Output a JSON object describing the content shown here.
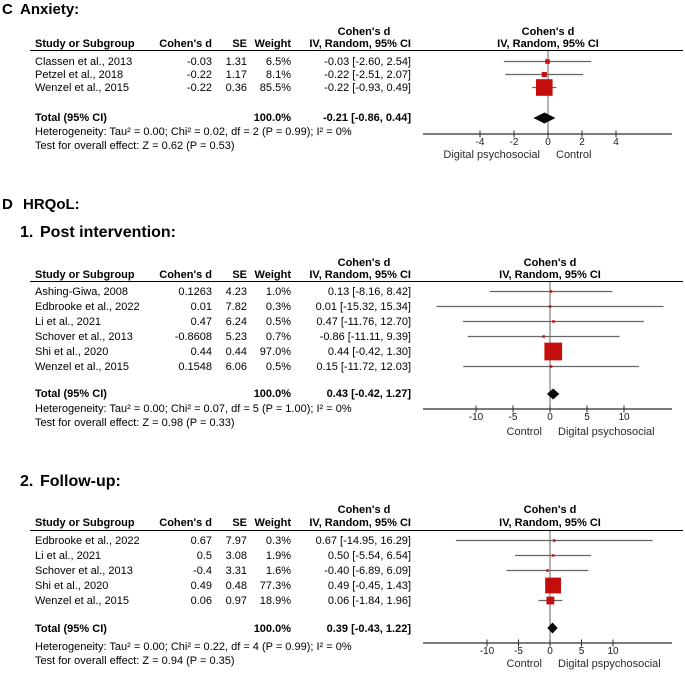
{
  "colors": {
    "marker_red": "#C40D0D",
    "diamond_black": "#0a0a0a",
    "ci_line_gray": "#666666",
    "axis_dark": "#2e2e2e",
    "text_black": "#000000"
  },
  "chart_data": [
    {
      "type": "forest",
      "section_label": "C",
      "section_title": "Anxiety:",
      "subsection_number": "",
      "subsection_title": "",
      "effect_measure": "Cohen's d",
      "model_label": "IV, Random, 95% CI",
      "table_headers": {
        "study": "Study or Subgroup",
        "effect": "Cohen's d",
        "se": "SE",
        "weight": "Weight",
        "ci": "IV, Random, 95% CI"
      },
      "studies": [
        {
          "name": "Classen et al., 2013",
          "effect": "-0.03",
          "se": "1.31",
          "weight": "6.5%",
          "ci_text": "-0.03 [-2.60, 2.54]",
          "est": -0.03,
          "lo": -2.6,
          "hi": 2.54,
          "weight_pct": 6.5
        },
        {
          "name": "Petzel et al., 2018",
          "effect": "-0.22",
          "se": "1.17",
          "weight": "8.1%",
          "ci_text": "-0.22 [-2.51, 2.07]",
          "est": -0.22,
          "lo": -2.51,
          "hi": 2.07,
          "weight_pct": 8.1
        },
        {
          "name": "Wenzel et al., 2015",
          "effect": "-0.22",
          "se": "0.36",
          "weight": "85.5%",
          "ci_text": "-0.22 [-0.93, 0.49]",
          "est": -0.22,
          "lo": -0.93,
          "hi": 0.49,
          "weight_pct": 85.5
        }
      ],
      "total": {
        "label": "Total (95% CI)",
        "weight": "100.0%",
        "ci_text": "-0.21 [-0.86, 0.44]",
        "est": -0.21,
        "lo": -0.86,
        "hi": 0.44
      },
      "heterogeneity": "Heterogeneity: Tau² = 0.00; Chi² = 0.02, df = 2 (P = 0.99); I² = 0%",
      "overall_test": "Test for overall effect: Z = 0.62 (P = 0.53)",
      "axis": {
        "ticks": [
          -4,
          -2,
          0,
          2,
          4
        ],
        "range": [
          -7.3,
          7.3
        ],
        "left_label": "Digital psychosocial",
        "right_label": "Control"
      }
    },
    {
      "type": "forest",
      "section_label": "D",
      "section_title": "HRQoL:",
      "subsection_number": "1.",
      "subsection_title": "Post intervention:",
      "effect_measure": "Cohen's d",
      "model_label": "IV, Random, 95% CI",
      "table_headers": {
        "study": "Study or Subgroup",
        "effect": "Cohen's d",
        "se": "SE",
        "weight": "Weight",
        "ci": "IV, Random, 95% CI"
      },
      "studies": [
        {
          "name": "Ashing-Giwa, 2008",
          "effect": "0.1263",
          "se": "4.23",
          "weight": "1.0%",
          "ci_text": "0.13 [-8.16, 8.42]",
          "est": 0.13,
          "lo": -8.16,
          "hi": 8.42,
          "weight_pct": 1.0
        },
        {
          "name": "Edbrooke et al., 2022",
          "effect": "0.01",
          "se": "7.82",
          "weight": "0.3%",
          "ci_text": "0.01 [-15.32, 15.34]",
          "est": 0.01,
          "lo": -15.32,
          "hi": 15.34,
          "weight_pct": 0.3
        },
        {
          "name": "Li et al., 2021",
          "effect": "0.47",
          "se": "6.24",
          "weight": "0.5%",
          "ci_text": "0.47 [-11.76, 12.70]",
          "est": 0.47,
          "lo": -11.76,
          "hi": 12.7,
          "weight_pct": 0.5
        },
        {
          "name": "Schover et al., 2013",
          "effect": "-0.8608",
          "se": "5.23",
          "weight": "0.7%",
          "ci_text": "-0.86 [-11.11, 9.39]",
          "est": -0.86,
          "lo": -11.11,
          "hi": 9.39,
          "weight_pct": 0.7
        },
        {
          "name": "Shi et al., 2020",
          "effect": "0.44",
          "se": "0.44",
          "weight": "97.0%",
          "ci_text": "0.44 [-0.42, 1.30]",
          "est": 0.44,
          "lo": -0.42,
          "hi": 1.3,
          "weight_pct": 97.0
        },
        {
          "name": "Wenzel et al., 2015",
          "effect": "0.1548",
          "se": "6.06",
          "weight": "0.5%",
          "ci_text": "0.15 [-11.72, 12.03]",
          "est": 0.15,
          "lo": -11.72,
          "hi": 12.03,
          "weight_pct": 0.5
        }
      ],
      "total": {
        "label": "Total (95% CI)",
        "weight": "100.0%",
        "ci_text": "0.43 [-0.42, 1.27]",
        "est": 0.43,
        "lo": -0.42,
        "hi": 1.27
      },
      "heterogeneity": "Heterogeneity: Tau² = 0.00; Chi² = 0.07, df = 5 (P = 1.00); I² = 0%",
      "overall_test": "Test for overall effect: Z = 0.98 (P = 0.33)",
      "axis": {
        "ticks": [
          -10,
          -5,
          0,
          5,
          10
        ],
        "range": [
          -17.2,
          16.5
        ],
        "left_label": "Control",
        "right_label": "Digital psychosocial"
      }
    },
    {
      "type": "forest",
      "section_label": "",
      "section_title": "",
      "subsection_number": "2.",
      "subsection_title": "Follow-up:",
      "effect_measure": "Cohen's d",
      "model_label": "IV, Random, 95% CI",
      "table_headers": {
        "study": "Study or Subgroup",
        "effect": "Cohen's d",
        "se": "SE",
        "weight": "Weight",
        "ci": "IV, Random, 95% CI"
      },
      "studies": [
        {
          "name": "Edbrooke et al., 2022",
          "effect": "0.67",
          "se": "7.97",
          "weight": "0.3%",
          "ci_text": "0.67 [-14.95, 16.29]",
          "est": 0.67,
          "lo": -14.95,
          "hi": 16.29,
          "weight_pct": 0.3
        },
        {
          "name": "Li et al., 2021",
          "effect": "0.5",
          "se": "3.08",
          "weight": "1.9%",
          "ci_text": "0.50 [-5.54, 6.54]",
          "est": 0.5,
          "lo": -5.54,
          "hi": 6.54,
          "weight_pct": 1.9
        },
        {
          "name": "Schover et al., 2013",
          "effect": "-0.4",
          "se": "3.31",
          "weight": "1.6%",
          "ci_text": "-0.40 [-6.89, 6.09]",
          "est": -0.4,
          "lo": -6.89,
          "hi": 6.09,
          "weight_pct": 1.6
        },
        {
          "name": "Shi et al., 2020",
          "effect": "0.49",
          "se": "0.48",
          "weight": "77.3%",
          "ci_text": "0.49 [-0.45, 1.43]",
          "est": 0.49,
          "lo": -0.45,
          "hi": 1.43,
          "weight_pct": 77.3
        },
        {
          "name": "Wenzel et al., 2015",
          "effect": "0.06",
          "se": "0.97",
          "weight": "18.9%",
          "ci_text": "0.06 [-1.84, 1.96]",
          "est": 0.06,
          "lo": -1.84,
          "hi": 1.96,
          "weight_pct": 18.9
        }
      ],
      "total": {
        "label": "Total (95% CI)",
        "weight": "100.0%",
        "ci_text": "0.39 [-0.43, 1.22]",
        "est": 0.39,
        "lo": -0.43,
        "hi": 1.22
      },
      "heterogeneity": "Heterogeneity: Tau² = 0.00; Chi² = 0.22, df = 4 (P = 0.99); I² = 0%",
      "overall_test": "Test for overall effect: Z = 0.94 (P = 0.35)",
      "axis": {
        "ticks": [
          -10,
          -5,
          0,
          5,
          10
        ],
        "range": [
          -20.2,
          19.4
        ],
        "left_label": "Control",
        "right_label": "Digital pspychosocial"
      }
    }
  ]
}
